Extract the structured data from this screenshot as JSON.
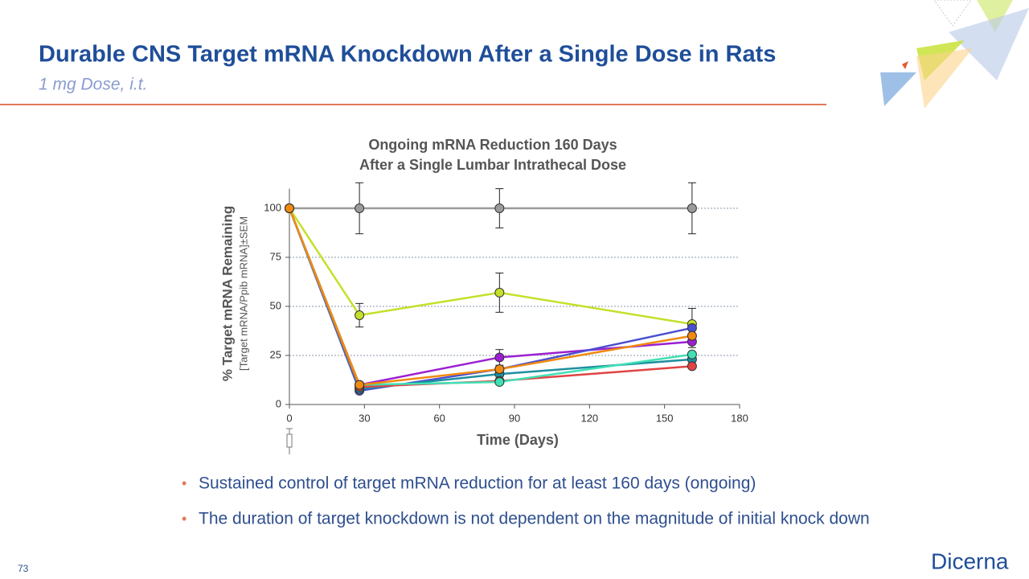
{
  "header": {
    "title": "Durable CNS Target mRNA Knockdown After a Single Dose in Rats",
    "subtitle": "1 mg Dose, i.t."
  },
  "chart_data": {
    "type": "line",
    "title": [
      "Ongoing mRNA Reduction 160 Days",
      "After a Single Lumbar Intrathecal Dose"
    ],
    "y_label": "% Target mRNA Remaining",
    "y_sublabel": "[Target mRNA/Ppib mRNA]±SEM",
    "x_label": "Time (Days)",
    "x": [
      0,
      28,
      84,
      161
    ],
    "xlim": [
      0,
      180
    ],
    "xticks": [
      0,
      30,
      60,
      90,
      120,
      150,
      180
    ],
    "ylim": [
      0,
      110
    ],
    "yticks": [
      0,
      25,
      50,
      75,
      100
    ],
    "grid": true,
    "series": [
      {
        "color": "#9b9b9b",
        "values": [
          100,
          100,
          100,
          100
        ],
        "errors": [
          0,
          13,
          10,
          13
        ]
      },
      {
        "color": "#c5e02a",
        "values": [
          100,
          45.5,
          57,
          41
        ],
        "errors": [
          0,
          6,
          10,
          8
        ]
      },
      {
        "color": "#9b1fd1",
        "values": [
          100,
          10,
          24,
          32
        ],
        "errors": [
          0,
          0,
          4,
          3
        ]
      },
      {
        "color": "#4a4fd0",
        "values": [
          100,
          7,
          18,
          39
        ],
        "errors": [
          0,
          0,
          0,
          0
        ]
      },
      {
        "color": "#1e8fa0",
        "values": [
          100,
          8,
          15.5,
          23
        ],
        "errors": [
          0,
          0,
          0,
          0
        ]
      },
      {
        "color": "#e04444",
        "values": [
          100,
          9,
          12,
          19.5
        ],
        "errors": [
          0,
          0,
          0,
          0
        ]
      },
      {
        "color": "#40e0b4",
        "values": [
          100,
          10,
          11.5,
          25.5
        ],
        "errors": [
          0,
          0,
          0,
          0
        ]
      },
      {
        "color": "#f08a10",
        "values": [
          100,
          10,
          18,
          35
        ],
        "errors": [
          0,
          0,
          0,
          0
        ]
      }
    ]
  },
  "bullets": [
    "Sustained control of target mRNA reduction for at least 160 days (ongoing)",
    "The duration of target knockdown is not dependent on the magnitude of initial knock down"
  ],
  "footer": {
    "page": "73",
    "logo": "Dicerna"
  }
}
